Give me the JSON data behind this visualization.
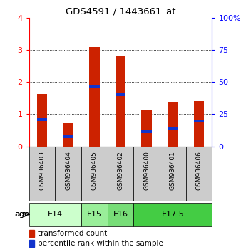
{
  "title": "GDS4591 / 1443661_at",
  "samples": [
    "GSM936403",
    "GSM936404",
    "GSM936405",
    "GSM936402",
    "GSM936400",
    "GSM936401",
    "GSM936406"
  ],
  "transformed_count": [
    1.62,
    0.72,
    3.08,
    2.8,
    1.13,
    1.38,
    1.4
  ],
  "percentile_rank": [
    0.84,
    0.3,
    1.87,
    1.6,
    0.45,
    0.57,
    0.78
  ],
  "age_groups": [
    {
      "label": "E14",
      "start": 0,
      "end": 2,
      "color": "#ccffcc"
    },
    {
      "label": "E15",
      "start": 2,
      "end": 3,
      "color": "#99ee99"
    },
    {
      "label": "E16",
      "start": 3,
      "end": 4,
      "color": "#77dd77"
    },
    {
      "label": "E17.5",
      "start": 4,
      "end": 7,
      "color": "#44cc44"
    }
  ],
  "ylim_left": [
    0,
    4
  ],
  "ylim_right": [
    0,
    100
  ],
  "yticks_left": [
    0,
    1,
    2,
    3,
    4
  ],
  "yticks_right": [
    0,
    25,
    50,
    75,
    100
  ],
  "ytick_right_labels": [
    "0",
    "25",
    "50",
    "75",
    "100%"
  ],
  "bar_color_red": "#cc2200",
  "bar_color_blue": "#1133cc",
  "bar_width": 0.4,
  "sample_box_color": "#cccccc",
  "legend_red": "transformed count",
  "legend_blue": "percentile rank within the sample"
}
